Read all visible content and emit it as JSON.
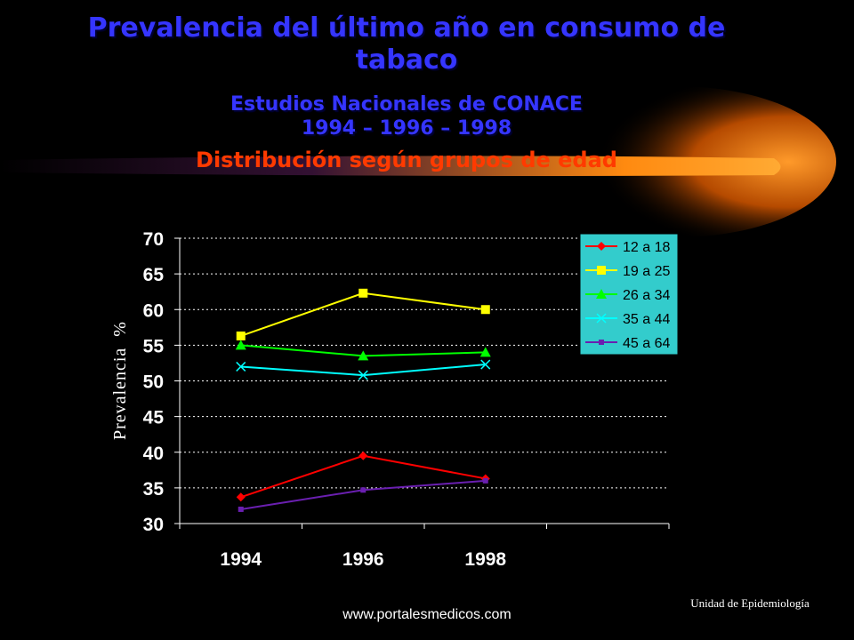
{
  "chart_data": {
    "type": "line",
    "title": "Prevalencia del último año en consumo de tabaco",
    "subtitles": [
      "Estudios Nacionales de CONACE",
      "1994 – 1996 – 1998"
    ],
    "description": "Distribución según grupos de edad",
    "y_label": "Prevalencia  %",
    "categories": [
      "1994",
      "1996",
      "1998",
      null
    ],
    "series": [
      {
        "name": "12 a 18",
        "color": "#ff0000",
        "marker": "diamond",
        "values": [
          33.7,
          39.5,
          36.3,
          null
        ]
      },
      {
        "name": "19 a 25",
        "color": "#ffff00",
        "marker": "square",
        "values": [
          56.3,
          62.3,
          60.0,
          null
        ]
      },
      {
        "name": "26 a 34",
        "color": "#00ff00",
        "marker": "triangle",
        "values": [
          55.0,
          53.5,
          54.0,
          null
        ]
      },
      {
        "name": "35 a 44",
        "color": "#00ffff",
        "marker": "x",
        "values": [
          52.0,
          50.8,
          52.3,
          null
        ]
      },
      {
        "name": "45 a 64",
        "color": "#6a1fb0",
        "marker": "small-square",
        "values": [
          32.0,
          34.7,
          36.0,
          null
        ]
      }
    ],
    "ylim": [
      30,
      70
    ],
    "yticks": [
      30,
      35,
      40,
      45,
      50,
      55,
      60,
      65,
      70
    ],
    "grid": true,
    "legend": "top-right"
  },
  "footer": {
    "source": "www.portalesmedicos.com",
    "unit": "Unidad de Epidemiología"
  }
}
